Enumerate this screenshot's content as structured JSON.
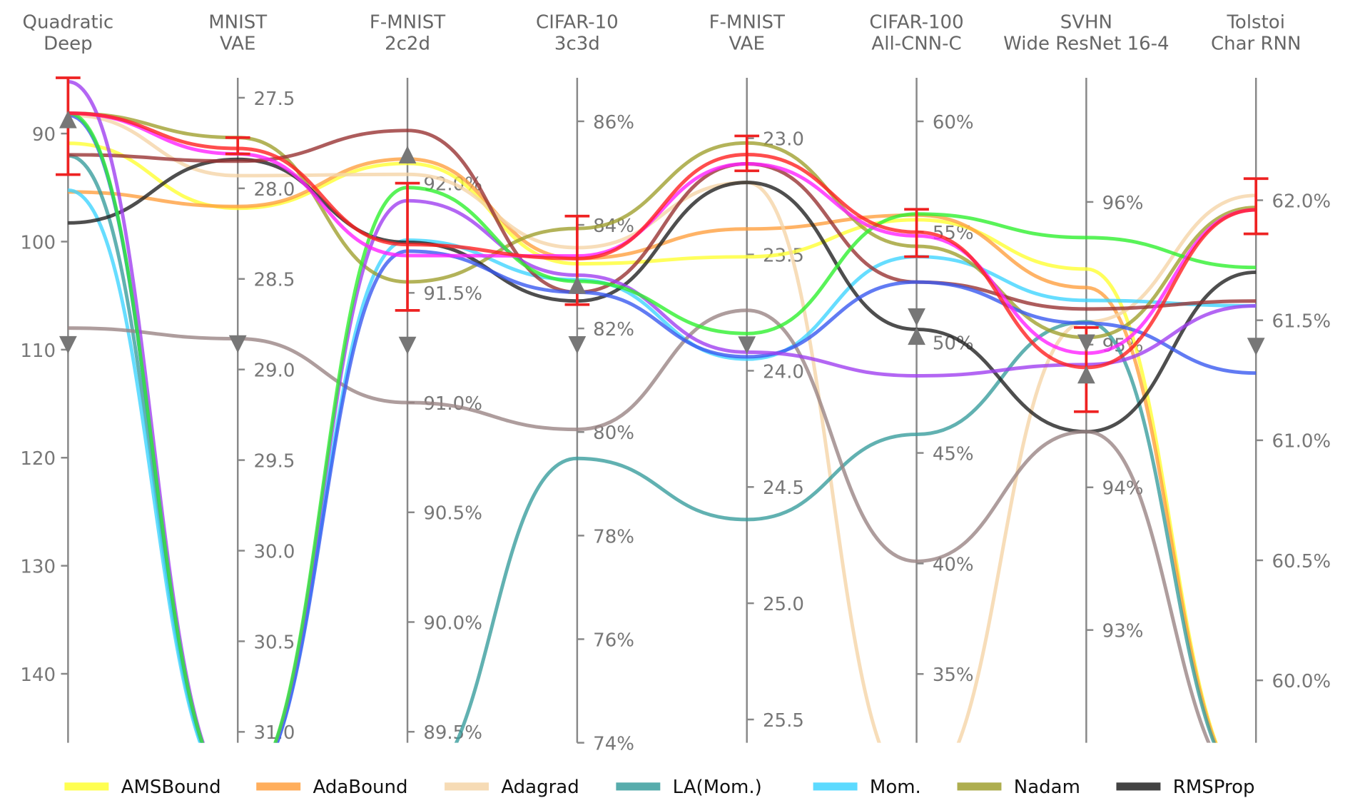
{
  "chart_data": {
    "type": "parallel-coordinates",
    "title": "",
    "axes": [
      {
        "title": [
          "Quadratic",
          "Deep"
        ],
        "range": [
          84.84,
          146.38
        ],
        "ticks": [
          90,
          100,
          110,
          120,
          130,
          140
        ],
        "tick_labels": [
          "90",
          "100",
          "110",
          "120",
          "130",
          "140"
        ],
        "label_side": "left"
      },
      {
        "title": [
          "MNIST",
          "VAE"
        ],
        "range": [
          27.39,
          31.06
        ],
        "ticks": [
          27.5,
          28.0,
          28.5,
          29.0,
          29.5,
          30.0,
          30.5,
          31.0
        ],
        "tick_labels": [
          "27.5",
          "28.0",
          "28.5",
          "29.0",
          "29.5",
          "30.0",
          "30.5",
          "31.0"
        ],
        "label_side": "right"
      },
      {
        "title": [
          "F-MNIST",
          "2c2d"
        ],
        "range": [
          92.48,
          89.45
        ],
        "ticks": [
          92.0,
          91.5,
          91.0,
          90.5,
          90.0,
          89.5
        ],
        "tick_labels": [
          "92.0%",
          "91.5%",
          "91.0%",
          "90.5%",
          "90.0%",
          "89.5%"
        ],
        "label_side": "right"
      },
      {
        "title": [
          "CIFAR-10",
          "3c3d"
        ],
        "range": [
          86.84,
          74.0
        ],
        "ticks": [
          86,
          84,
          82,
          80,
          78,
          76,
          74
        ],
        "tick_labels": [
          "86%",
          "84%",
          "82%",
          "80%",
          "78%",
          "76%",
          "74%"
        ],
        "label_side": "right"
      },
      {
        "title": [
          "F-MNIST",
          "VAE"
        ],
        "range": [
          22.74,
          25.6
        ],
        "ticks": [
          23.0,
          23.5,
          24.0,
          24.5,
          25.0,
          25.5
        ],
        "tick_labels": [
          "23.0",
          "23.5",
          "24.0",
          "24.5",
          "25.0",
          "25.5"
        ],
        "label_side": "right"
      },
      {
        "title": [
          "CIFAR-100",
          "All-CNN-C"
        ],
        "range": [
          61.97,
          31.89
        ],
        "ticks": [
          60,
          55,
          50,
          45,
          40,
          35
        ],
        "tick_labels": [
          "60%",
          "55%",
          "50%",
          "45%",
          "40%",
          "35%"
        ],
        "label_side": "right"
      },
      {
        "title": [
          "SVHN",
          "Wide ResNet 16-4"
        ],
        "range": [
          96.87,
          92.21
        ],
        "ticks": [
          96,
          95,
          94,
          93
        ],
        "tick_labels": [
          "96%",
          "95%",
          "94%",
          "93%"
        ],
        "label_side": "right"
      },
      {
        "title": [
          "Tolstoi",
          "Char RNN"
        ],
        "range": [
          62.51,
          59.74
        ],
        "ticks": [
          62.0,
          61.5,
          61.0,
          60.5,
          60.0
        ],
        "tick_labels": [
          "62.0%",
          "61.5%",
          "61.0%",
          "60.5%",
          "60.0%"
        ],
        "label_side": "right"
      }
    ],
    "series": [
      {
        "name": "AMSBound",
        "color": "#ffff33",
        "values": [
          90.9,
          28.11,
          92.09,
          83.25,
          23.51,
          55.55,
          95.53,
          59.15
        ]
      },
      {
        "name": "AdaBound",
        "color": "#ffa040",
        "values": [
          95.4,
          28.1,
          92.11,
          83.35,
          23.39,
          55.76,
          95.4,
          59.11
        ]
      },
      {
        "name": "Adagrad",
        "color": "#f5d5a8",
        "values": [
          88.28,
          27.93,
          92.04,
          83.56,
          23.19,
          20.0,
          95.16,
          62.02
        ]
      },
      {
        "name": "LA(Mom.)",
        "color": "#3a9e9e",
        "values": [
          92.05,
          45.0,
          80.0,
          79.49,
          24.64,
          45.84,
          95.16,
          54.0
        ]
      },
      {
        "name": "Mom.",
        "color": "#40d4ff",
        "values": [
          95.24,
          37.0,
          91.74,
          82.94,
          23.95,
          53.88,
          95.31,
          61.56
        ]
      },
      {
        "name": "Nadam",
        "color": "#a0a030",
        "values": [
          88.12,
          27.72,
          91.55,
          83.93,
          23.02,
          54.35,
          95.05,
          61.97
        ]
      },
      {
        "name": "RMSProp",
        "color": "#222222",
        "values": [
          98.27,
          27.84,
          91.73,
          82.53,
          23.19,
          50.59,
          94.39,
          61.7
        ]
      },
      {
        "name": "",
        "color": "#9a8585",
        "values": [
          108.0,
          28.83,
          91.0,
          80.05,
          23.74,
          40.1,
          94.39,
          58.78
        ]
      },
      {
        "name": "",
        "color": "#993333",
        "values": [
          91.96,
          27.85,
          92.24,
          82.7,
          23.11,
          52.73,
          95.25,
          61.58
        ]
      },
      {
        "name": "",
        "color": "#3a5af0",
        "values": [
          88.3,
          37.0,
          91.69,
          82.7,
          23.94,
          52.73,
          95.15,
          61.28
        ]
      },
      {
        "name": "",
        "color": "#a040f0",
        "values": [
          85.2,
          37.0,
          91.92,
          83.03,
          23.92,
          48.49,
          94.86,
          61.56
        ]
      },
      {
        "name": "",
        "color": "#30f030",
        "values": [
          88.12,
          34.5,
          91.98,
          82.91,
          23.84,
          55.81,
          95.75,
          61.72
        ]
      },
      {
        "name": "",
        "color": "#ff20ff",
        "values": [
          88.12,
          27.81,
          91.67,
          83.4,
          23.11,
          54.82,
          94.94,
          61.96
        ]
      },
      {
        "name": "",
        "color": "#ff2020",
        "values": [
          88.12,
          27.78,
          91.72,
          83.35,
          23.07,
          54.99,
          94.84,
          61.96
        ]
      }
    ],
    "error_bars": [
      [
        84.84,
        93.8
      ],
      [
        27.72,
        27.81
      ],
      [
        92.0,
        91.42
      ],
      [
        84.17,
        82.46
      ],
      [
        22.99,
        23.14
      ],
      [
        56.02,
        53.88
      ],
      [
        95.12,
        94.53
      ],
      [
        62.09,
        61.86
      ]
    ],
    "error_bar_color": "#ee2222",
    "down_markers": [
      109.56,
      28.86,
      91.26,
      81.68,
      23.89,
      51.14,
      95.01,
      61.39
    ],
    "up_markers": [
      88.69,
      null,
      92.13,
      82.84,
      null,
      50.29,
      94.79,
      null
    ],
    "legend": {
      "placement": "bottom",
      "entries": [
        "AMSBound",
        "AdaBound",
        "Adagrad",
        "LA(Mom.)",
        "Mom.",
        "Nadam",
        "RMSProp"
      ]
    }
  }
}
